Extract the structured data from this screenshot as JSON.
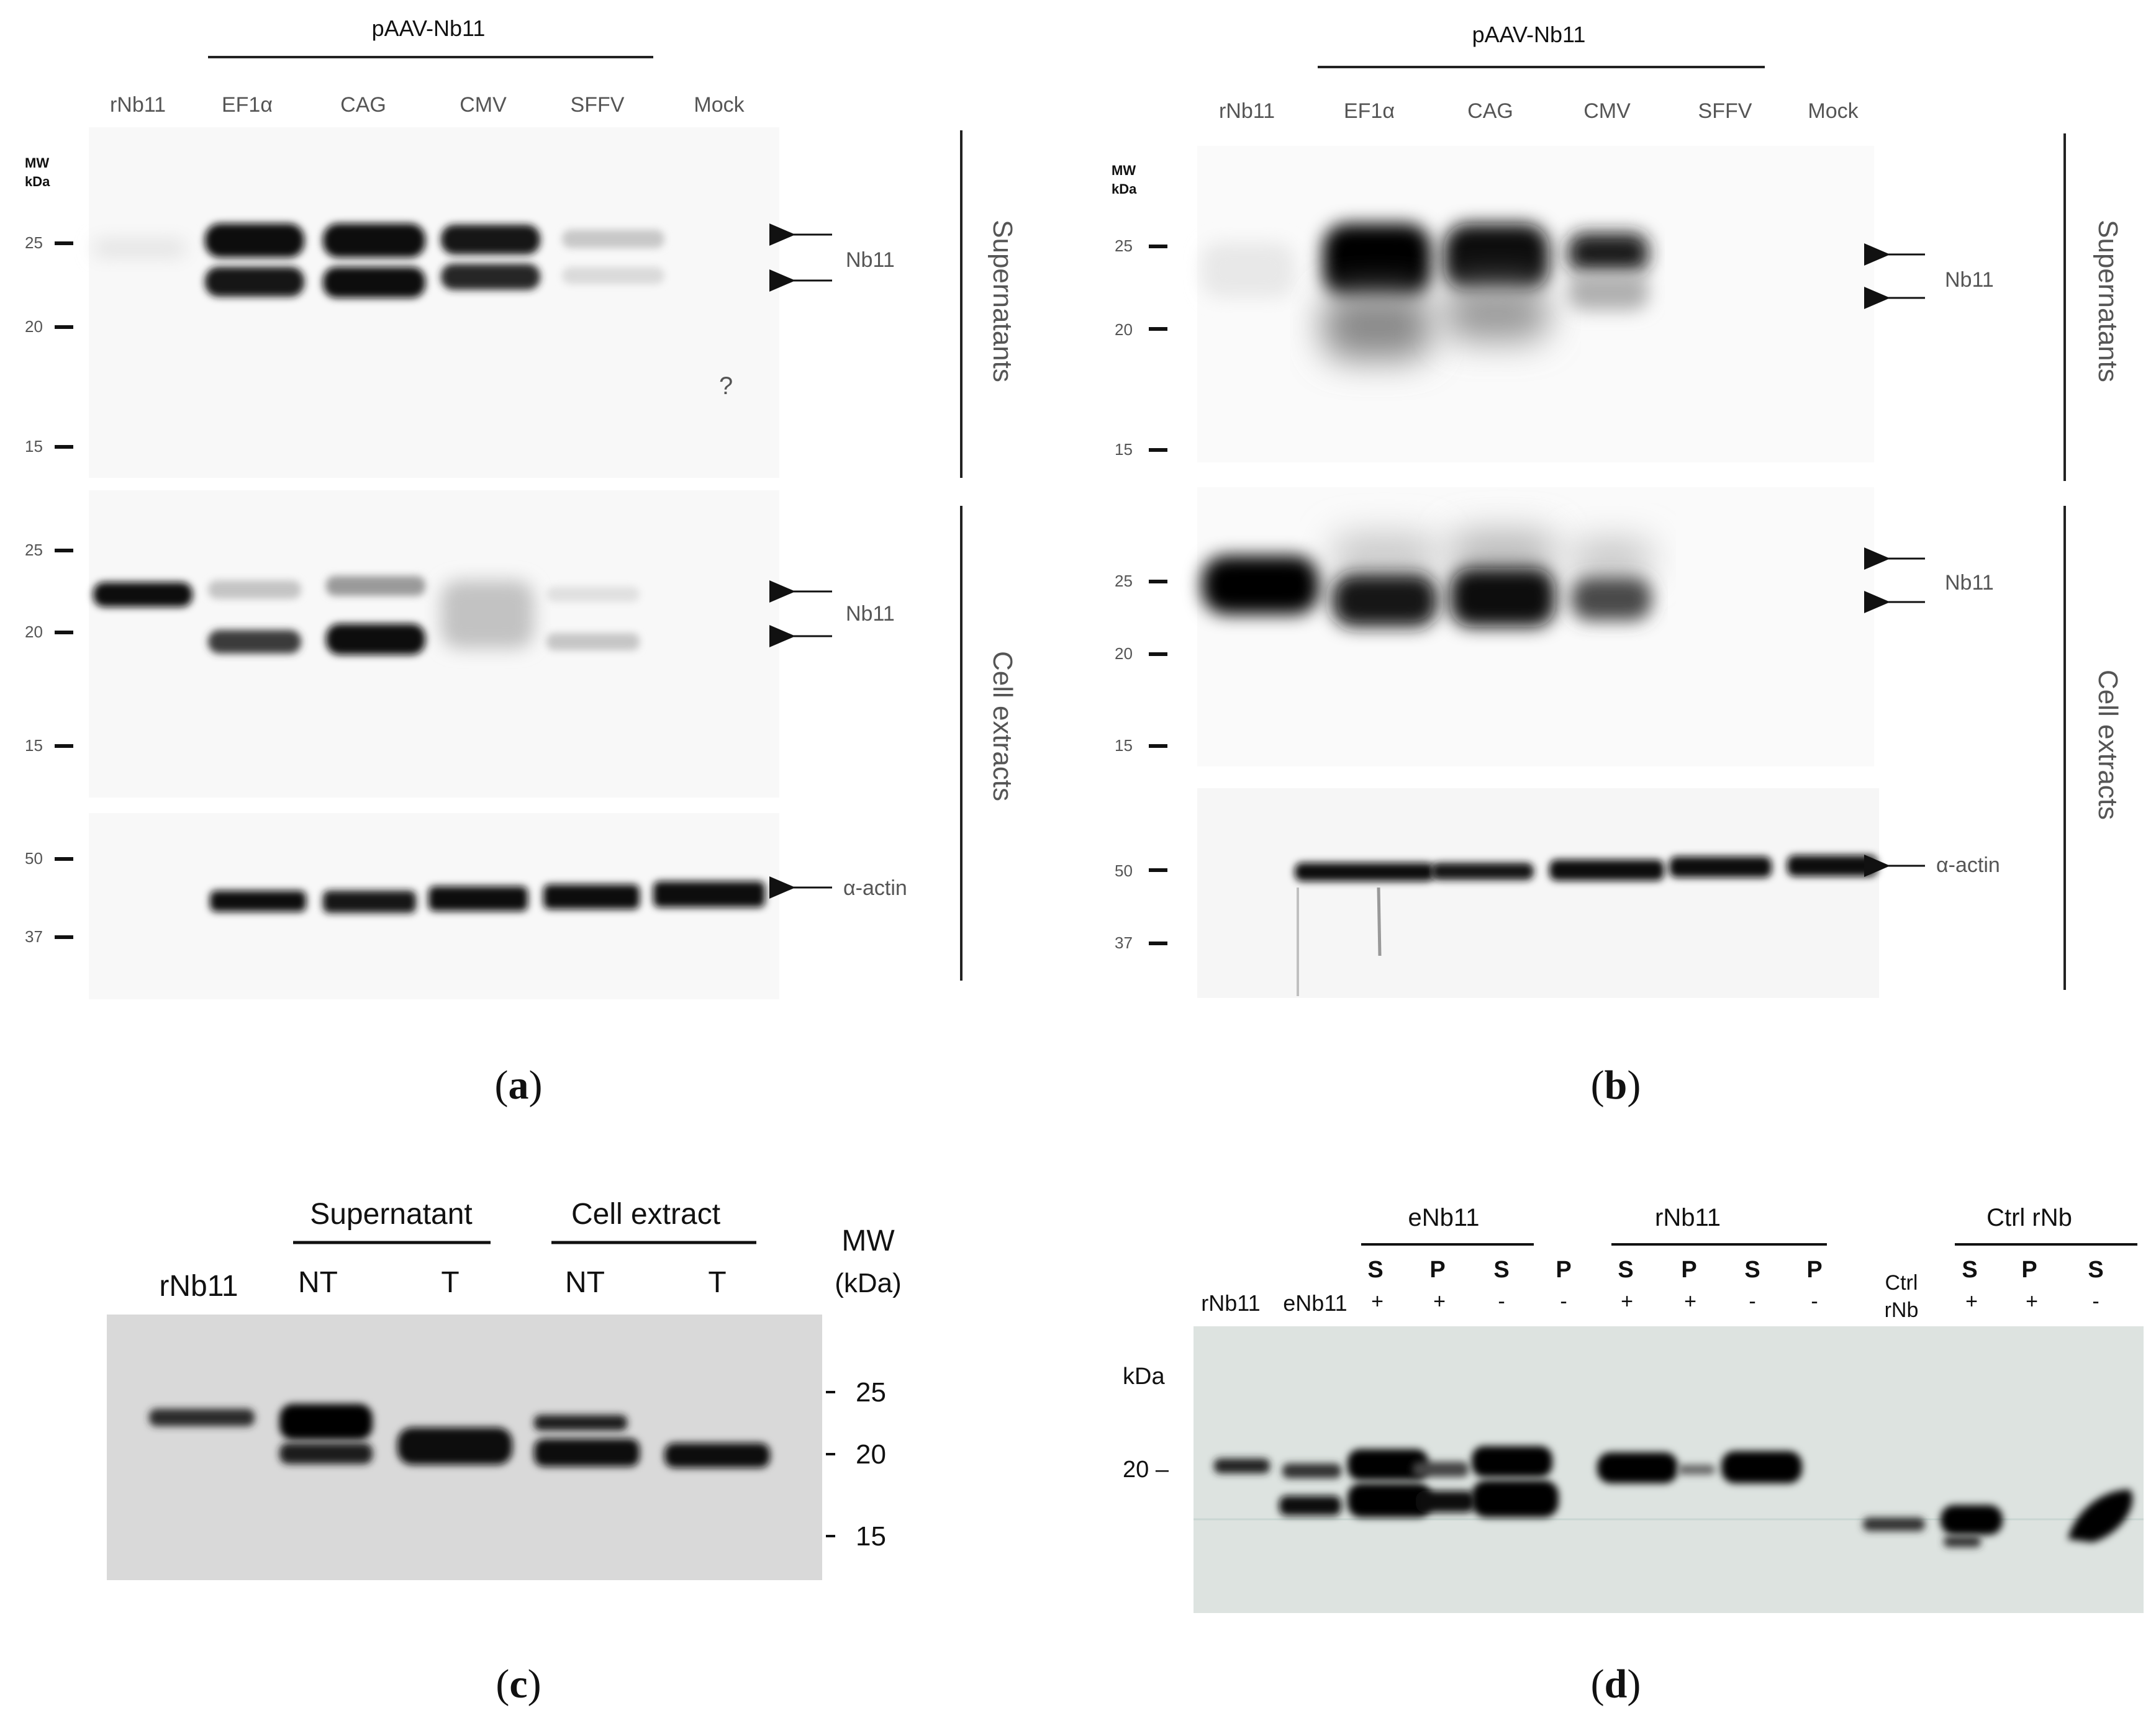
{
  "figure": {
    "panel_a": {
      "caption_open": "(",
      "caption_letter": "a",
      "caption_close": ")",
      "construct": "pAAV-Nb11",
      "lanes": [
        "rNb11",
        "EF1α",
        "CAG",
        "CMV",
        "SFFV",
        "Mock"
      ],
      "mw_header_1": "MW",
      "mw_header_2": "kDa",
      "supernatant_mw": [
        "25",
        "20",
        "15"
      ],
      "cell_mw": [
        "25",
        "20",
        "15"
      ],
      "actin_mw": [
        "50",
        "37"
      ],
      "side_label_supernatants": "Supernatants",
      "side_label_cell": "Cell extracts",
      "band_label_nb11_top": "Nb11",
      "band_label_nb11_mid": "Nb11",
      "band_label_actin": "α-actin",
      "stray_mark": "?"
    },
    "panel_b": {
      "caption_open": "(",
      "caption_letter": "b",
      "caption_close": ")",
      "construct": "pAAV-Nb11",
      "lanes": [
        "rNb11",
        "EF1α",
        "CAG",
        "CMV",
        "SFFV",
        "Mock"
      ],
      "mw_header_1": "MW",
      "mw_header_2": "kDa",
      "supernatant_mw": [
        "25",
        "20",
        "15"
      ],
      "cell_mw": [
        "25",
        "20",
        "15"
      ],
      "actin_mw": [
        "50",
        "37"
      ],
      "side_label_supernatants": "Supernatants",
      "side_label_cell": "Cell extracts",
      "band_label_nb11_top": "Nb11",
      "band_label_nb11_mid": "Nb11",
      "band_label_actin": "α-actin"
    },
    "panel_c": {
      "caption_open": "(",
      "caption_letter": "c",
      "caption_close": ")",
      "group_supernatant": "Supernatant",
      "group_cell": "Cell extract",
      "lane_rnb11": "rNb11",
      "lanes": [
        "NT",
        "T",
        "NT",
        "T"
      ],
      "mw_header_1": "MW",
      "mw_header_2": "(kDa)",
      "mw": [
        "25",
        "20",
        "15"
      ]
    },
    "panel_d": {
      "caption_open": "(",
      "caption_letter": "d",
      "caption_close": ")",
      "group_enb11": "eNb11",
      "group_rnb11": "rNb11",
      "group_ctrl": "Ctrl rNb",
      "fraction_row": [
        "S",
        "P",
        "S",
        "P",
        "S",
        "P",
        "S",
        "P",
        "S",
        "P",
        "S"
      ],
      "sign_row": [
        "+",
        "+",
        "-",
        "-",
        "+",
        "+",
        "-",
        "-",
        "+",
        "+",
        "-"
      ],
      "lane_rnb11": "rNb11",
      "lane_enb11": "eNb11",
      "lane_ctrl_1": "Ctrl",
      "lane_ctrl_2": "rNb",
      "kda": "kDa",
      "mw_20": "20 –"
    }
  }
}
